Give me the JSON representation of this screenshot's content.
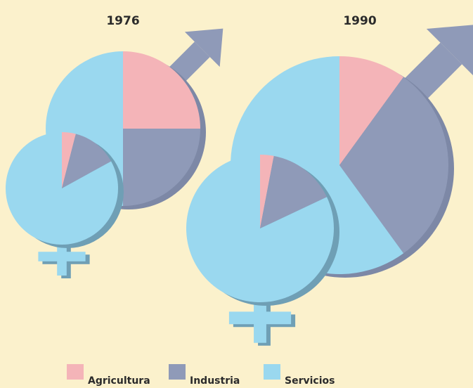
{
  "chart_data": {
    "type": "pie",
    "categories": [
      "Agricultura",
      "Industria",
      "Servicios"
    ],
    "colors": [
      "#f4b4b8",
      "#8f9ab8",
      "#9ad8ef"
    ],
    "groups": [
      {
        "label": "1976",
        "series": [
          {
            "values": [
              25,
              25,
              50
            ]
          },
          {
            "values": [
              4,
              13,
              83
            ]
          }
        ]
      },
      {
        "label": "1990",
        "series": [
          {
            "values": [
              10,
              30,
              60
            ]
          },
          {
            "values": [
              3,
              15,
              82
            ]
          }
        ]
      }
    ]
  }
}
